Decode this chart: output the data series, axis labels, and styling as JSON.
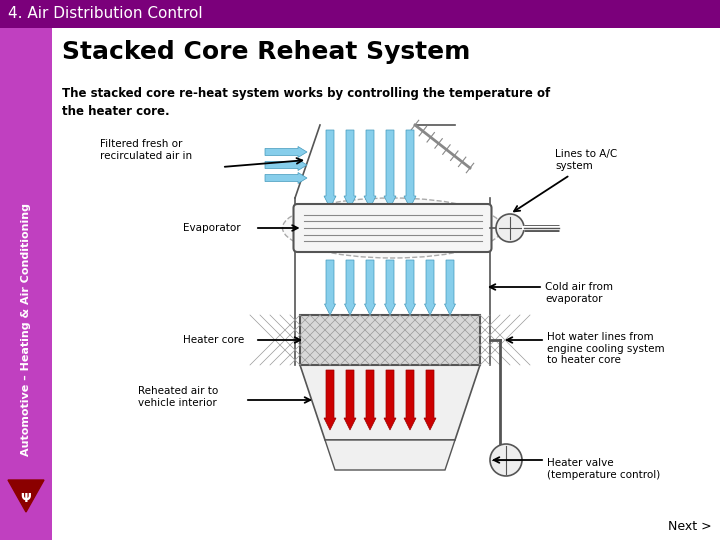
{
  "title_bar_text": "4. Air Distribution Control",
  "title_bar_color": "#7B007B",
  "title_bar_text_color": "#ffffff",
  "left_bar_color_top": "#cc44cc",
  "left_bar_color_bot": "#aa00aa",
  "sidebar_text": "Automotive – Heating & Air Conditioning",
  "main_title": "Stacked Core Reheat System",
  "description": "The stacked core re-heat system works by controlling the temperature of\nthe heater core.",
  "bg_color": "#ffffff",
  "labels": {
    "filtered_air": "Filtered fresh or\nrecirculated air in",
    "lines_ac": "Lines to A/C\nsystem",
    "evaporator": "Evaporator",
    "cold_air": "Cold air from\nevaporator",
    "heater_core": "Heater core",
    "reheated_air": "Reheated air to\nvehicle interior",
    "hot_water": "Hot water lines from\nengine cooling system\nto heater core",
    "heater_valve": "Heater valve\n(temperature control)"
  },
  "next_text": "Next >",
  "blue_arrow_color": "#87CEEB",
  "blue_arrow_edge": "#4499bb",
  "red_arrow_color": "#CC0000",
  "red_arrow_edge": "#990000",
  "line_color": "#555555",
  "evap_fill": "#f5f5f5",
  "hc_fill": "#d8d8d8",
  "duct_fill": "#f0f0f0",
  "circle_fill": "#eeeeee"
}
